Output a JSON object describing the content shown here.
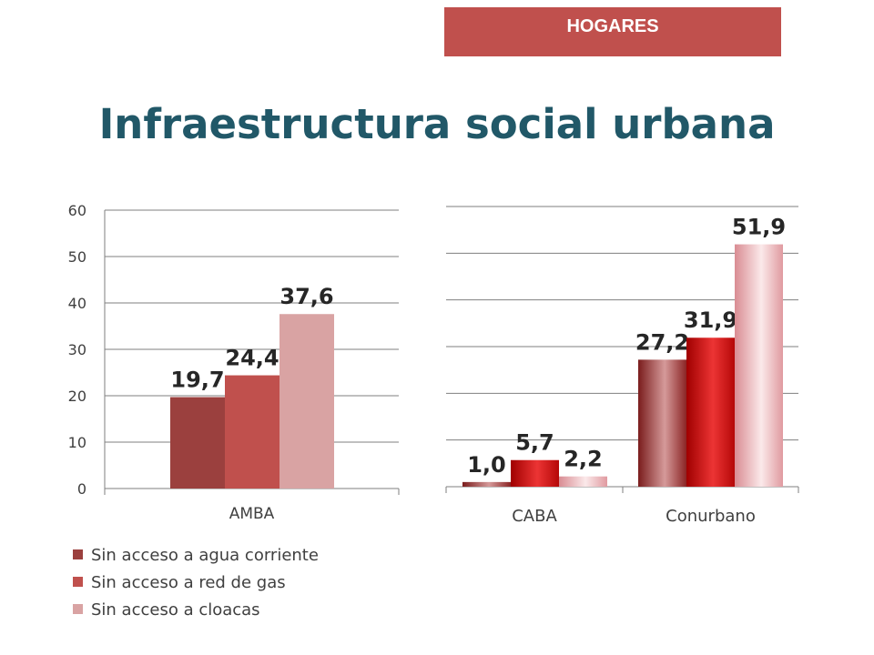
{
  "header": {
    "badge": "HOGARES",
    "title": "Infraestructura social urbana"
  },
  "chart_data": [
    {
      "type": "bar",
      "categories": [
        "AMBA"
      ],
      "series": [
        {
          "name": "Sin acceso a agua corriente",
          "values": [
            19.7
          ],
          "labels": [
            "19,7"
          ]
        },
        {
          "name": "Sin acceso a red de gas",
          "values": [
            24.4
          ],
          "labels": [
            "24,4"
          ]
        },
        {
          "name": "Sin acceso a cloacas",
          "values": [
            37.6
          ],
          "labels": [
            "37,6"
          ]
        }
      ],
      "ylim": [
        0,
        60
      ],
      "yticks": [
        "0",
        "10",
        "20",
        "30",
        "40",
        "50",
        "60"
      ],
      "grid": true,
      "legend": "bottom-left"
    },
    {
      "type": "bar",
      "categories": [
        "CABA",
        "Conurbano"
      ],
      "series": [
        {
          "name": "Sin acceso a agua corriente",
          "values": [
            1.0,
            27.2
          ],
          "labels": [
            "1,0",
            "27,2"
          ]
        },
        {
          "name": "Sin acceso a red de gas",
          "values": [
            5.7,
            31.9
          ],
          "labels": [
            "5,7",
            "31,9"
          ]
        },
        {
          "name": "Sin acceso a cloacas",
          "values": [
            2.2,
            51.9
          ],
          "labels": [
            "2,2",
            "51,9"
          ]
        }
      ],
      "ylim": [
        0,
        60
      ],
      "grid": true
    }
  ],
  "legend": [
    {
      "label": "Sin acceso a agua corriente",
      "color": "#9b403e"
    },
    {
      "label": "Sin acceso a red de gas",
      "color": "#c0504d"
    },
    {
      "label": "Sin acceso a cloacas",
      "color": "#d9a3a3"
    }
  ],
  "colors": {
    "accent": "#c0504d",
    "title": "#215868",
    "gradient_series": [
      "#a83232",
      "#cc0a0a",
      "#e8a9ad"
    ]
  }
}
